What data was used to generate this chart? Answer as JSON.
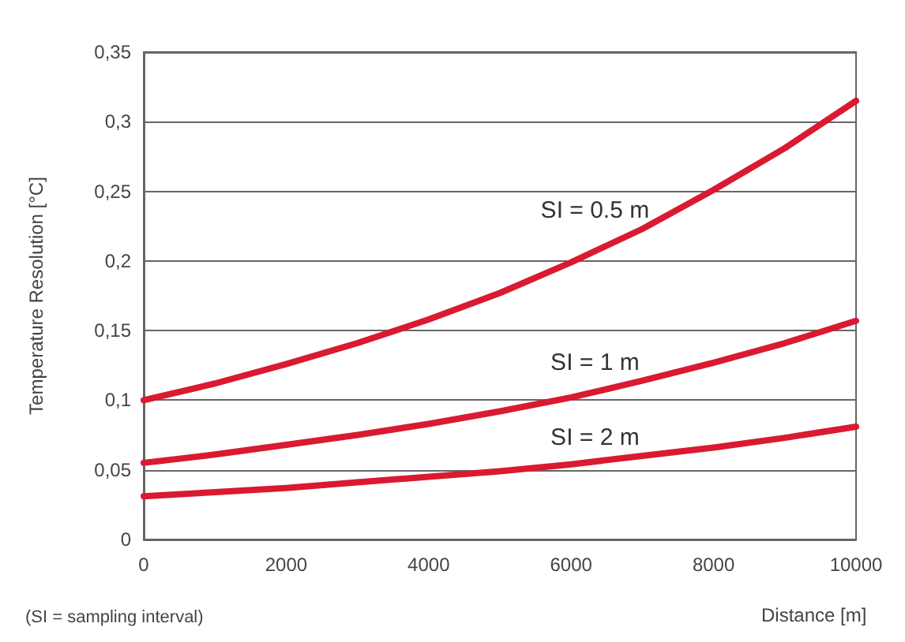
{
  "chart_data": {
    "type": "line",
    "xlabel": "Distance [m]",
    "ylabel": "Temperature Resolution [°C]",
    "x": [
      0,
      1000,
      2000,
      3000,
      4000,
      5000,
      6000,
      7000,
      8000,
      9000,
      10000
    ],
    "series": [
      {
        "name": "SI = 0.5 m",
        "color": "#d91a30",
        "values": [
          0.1,
          0.112,
          0.126,
          0.141,
          0.158,
          0.177,
          0.199,
          0.223,
          0.251,
          0.281,
          0.315
        ]
      },
      {
        "name": "SI = 1 m",
        "color": "#d91a30",
        "values": [
          0.055,
          0.061,
          0.068,
          0.075,
          0.083,
          0.092,
          0.102,
          0.114,
          0.127,
          0.141,
          0.157
        ]
      },
      {
        "name": "SI = 2 m",
        "color": "#d91a30",
        "values": [
          0.031,
          0.034,
          0.037,
          0.041,
          0.045,
          0.049,
          0.054,
          0.06,
          0.066,
          0.073,
          0.081
        ]
      }
    ],
    "xlim": [
      0,
      10000
    ],
    "xticks": [
      0,
      2000,
      4000,
      6000,
      8000,
      10000
    ],
    "ylim": [
      0,
      0.35
    ],
    "yticks": [
      0,
      {
        "value": 0.05,
        "label": "0,05"
      },
      {
        "value": 0.1,
        "label": "0,1"
      },
      {
        "value": 0.15,
        "label": "0,15"
      },
      {
        "value": 0.2,
        "label": "0,2"
      },
      {
        "value": 0.25,
        "label": "0,25"
      },
      {
        "value": 0.3,
        "label": "0,3"
      },
      {
        "value": 0.35,
        "label": "0,35"
      }
    ],
    "grid": "y",
    "marker": "none",
    "line_style": "solid",
    "annotations": [
      "(SI = sampling interval)"
    ]
  }
}
